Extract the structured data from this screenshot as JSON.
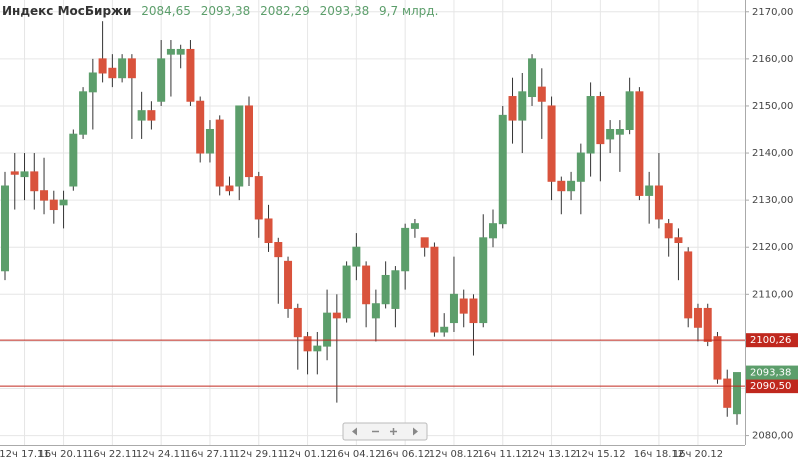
{
  "chart_data": {
    "type": "candlestick",
    "title": "Индекс МосБиржи",
    "ohlc_labels": [
      "2084,65",
      "2093,38",
      "2082,29",
      "2093,38"
    ],
    "volume_label": "9,7 млрд.",
    "up_color": "#5c9e6b",
    "down_color": "#d9533c",
    "grid": true,
    "categories": [
      null,
      null,
      "12ч 17.11",
      null,
      null,
      null,
      "16ч 20.11",
      null,
      null,
      null,
      null,
      "16ч 22.11",
      null,
      null,
      null,
      null,
      "12ч 24.11",
      null,
      null,
      null,
      null,
      "16ч 27.11",
      null,
      null,
      null,
      null,
      "12ч 29.11",
      null,
      null,
      null,
      null,
      "12ч 01.12",
      null,
      null,
      null,
      null,
      "16ч 04.12",
      null,
      null,
      null,
      null,
      "16ч 06.12",
      null,
      null,
      null,
      null,
      "12ч 08.12",
      null,
      null,
      null,
      null,
      "16ч 11.12",
      null,
      null,
      null,
      null,
      "12ч 13.12",
      null,
      null,
      null,
      null,
      "12ч 15.12",
      null,
      null,
      null,
      null,
      null,
      "16ч 18.12",
      null,
      null,
      null,
      "16ч 20.12",
      null,
      null,
      null,
      null
    ],
    "open": [
      2115,
      2136,
      2135,
      2136,
      2132,
      2130,
      2129,
      2133,
      2144,
      2153,
      2160,
      2158,
      2156,
      2160,
      2147,
      2149,
      2151,
      2161,
      2161,
      2162,
      2151,
      2140,
      2147,
      2133,
      2133,
      2150,
      2135,
      2126,
      2121,
      2117,
      2107,
      2101,
      2098,
      2099,
      2106,
      2105,
      2116,
      2116,
      2105,
      2108,
      2107,
      2115,
      2124,
      2122,
      2120,
      2102,
      2104,
      2109,
      2109,
      2104,
      2122,
      2125,
      2152,
      2147,
      2152,
      2154,
      2150,
      2134,
      2132,
      2134,
      2140,
      2152,
      2143,
      2144,
      2145,
      2153,
      2131,
      2133,
      2125,
      2122,
      2119,
      2107,
      2107,
      2101,
      2092,
      2084.65
    ],
    "high": [
      2136,
      2140,
      2140,
      2140,
      2139,
      2132,
      2132,
      2145,
      2154,
      2160,
      2168,
      2161,
      2161,
      2161,
      2153,
      2151,
      2164,
      2164,
      2163,
      2164,
      2152,
      2147,
      2148,
      2135,
      2150,
      2152,
      2136,
      2129,
      2122,
      2118,
      2108,
      2102,
      2102,
      2111,
      2110,
      2117,
      2123,
      2117,
      2111,
      2117,
      2116,
      2125,
      2126,
      2122,
      2121,
      2106,
      2118,
      2111,
      2110,
      2127,
      2128,
      2150,
      2156,
      2157,
      2161,
      2158,
      2152,
      2135,
      2136,
      2142,
      2155,
      2153,
      2147,
      2147,
      2156,
      2154,
      2136,
      2140,
      2126,
      2124,
      2120,
      2108,
      2108,
      2102,
      2094,
      2093.38
    ],
    "low": [
      2113,
      2128,
      2130,
      2128,
      2127,
      2125,
      2124,
      2132,
      2143,
      2145,
      2155,
      2154,
      2155,
      2143,
      2143,
      2145,
      2150,
      2152,
      2158,
      2150,
      2138,
      2138,
      2131,
      2131,
      2130,
      2133,
      2122,
      2119,
      2108,
      2105,
      2094,
      2093,
      2093,
      2096,
      2087,
      2104,
      2113,
      2103,
      2100,
      2107,
      2103,
      2111,
      2122,
      2118,
      2101,
      2101,
      2102,
      2103,
      2097,
      2103,
      2120,
      2124,
      2142,
      2140,
      2150,
      2143,
      2130,
      2127,
      2130,
      2127,
      2135,
      2134,
      2140,
      2136,
      2144,
      2130,
      2125,
      2124,
      2118,
      2113,
      2103,
      2100,
      2099,
      2091,
      2084,
      2082.29
    ],
    "close": [
      2133,
      2135.5,
      2136,
      2132,
      2130,
      2128,
      2130,
      2144,
      2153,
      2157,
      2157,
      2156,
      2160,
      2156,
      2149,
      2147,
      2160,
      2162,
      2162,
      2151,
      2140,
      2145,
      2133,
      2132,
      2150,
      2135,
      2126,
      2121,
      2118,
      2107,
      2101,
      2098,
      2099,
      2106,
      2105,
      2116,
      2120,
      2108,
      2108,
      2114,
      2115,
      2124,
      2125,
      2120,
      2102,
      2103,
      2110,
      2106,
      2104,
      2122,
      2125,
      2148,
      2147,
      2153,
      2160,
      2151,
      2134,
      2132,
      2134,
      2140,
      2152,
      2142,
      2145,
      2145,
      2153,
      2131,
      2133,
      2126,
      2122,
      2121,
      2105,
      2103,
      2100,
      2092,
      2086,
      2093.38
    ],
    "ylim": [
      2078,
      2172.5
    ],
    "yticks": [
      {
        "value": 2080,
        "label": "2080,00"
      },
      {
        "value": 2090,
        "label": "2090,00"
      },
      {
        "value": 2100,
        "label": "2100,00"
      },
      {
        "value": 2110,
        "label": "2110,00"
      },
      {
        "value": 2120,
        "label": "2120,00"
      },
      {
        "value": 2130,
        "label": "2130,00"
      },
      {
        "value": 2140,
        "label": "2140,00"
      },
      {
        "value": 2150,
        "label": "2150,00"
      },
      {
        "value": 2160,
        "label": "2160,00"
      },
      {
        "value": 2170,
        "label": "2170,00"
      }
    ],
    "levels": [
      {
        "value": 2100.26,
        "label": "2100,26"
      },
      {
        "value": 2090.5,
        "label": "2090,50"
      }
    ],
    "level_color": "#c0281e"
  }
}
